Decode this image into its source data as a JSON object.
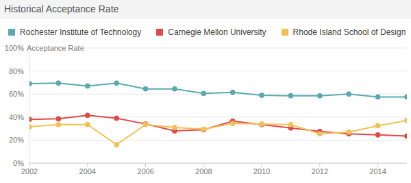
{
  "chart_data": {
    "type": "line",
    "title": "Historical Acceptance Rate",
    "y_label": "Acceptance Rate",
    "x": [
      2002,
      2003,
      2004,
      2005,
      2006,
      2007,
      2008,
      2009,
      2010,
      2011,
      2012,
      2013,
      2014,
      2015
    ],
    "series": [
      {
        "name": "Rochester Institute of Technology",
        "color": "#5aa9b0",
        "values": [
          69,
          69.5,
          67,
          69.5,
          64.5,
          64.5,
          60.5,
          61.5,
          59,
          58.5,
          58.5,
          60,
          57.5,
          57.5
        ]
      },
      {
        "name": "Carnegie Mellon University",
        "color": "#e04a48",
        "values": [
          38,
          38.5,
          41.5,
          39,
          34,
          28,
          29,
          36.5,
          33.5,
          30.5,
          27.5,
          25.5,
          24.5,
          23.5
        ]
      },
      {
        "name": "Rhode Island School of Design",
        "color": "#f2c155",
        "values": [
          31.5,
          33.5,
          33.5,
          16,
          33.5,
          31,
          29.5,
          34.5,
          34,
          33.5,
          25.5,
          27,
          32.5,
          37
        ]
      }
    ],
    "xlim": [
      2002,
      2015
    ],
    "xticks": [
      2002,
      2004,
      2006,
      2008,
      2010,
      2012,
      2014
    ],
    "ylim": [
      0,
      100
    ],
    "yticks": [
      {
        "value": 0,
        "label": "0%"
      },
      {
        "value": 20,
        "label": "20%"
      },
      {
        "value": 40,
        "label": "40%"
      },
      {
        "value": 60,
        "label": "60%"
      },
      {
        "value": 80,
        "label": "80%"
      },
      {
        "value": 100,
        "label": "100%"
      }
    ],
    "grid": true,
    "legend": "top-left",
    "marker": "circle"
  }
}
